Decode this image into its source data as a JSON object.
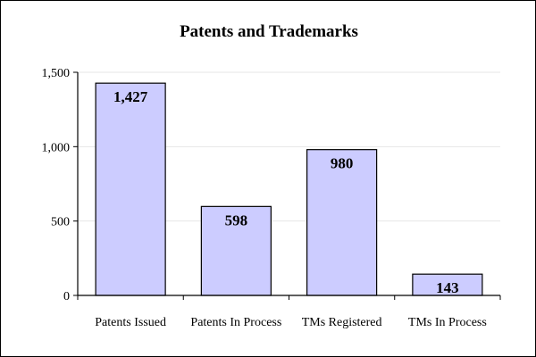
{
  "chart_data": {
    "type": "bar",
    "title": "Patents and Trademarks",
    "xlabel": "",
    "ylabel": "",
    "categories": [
      "Patents Issued",
      "Patents In Process",
      "TMs Registered",
      "TMs In Process"
    ],
    "values": [
      1427,
      598,
      980,
      143
    ],
    "data_labels": [
      "1,427",
      "598",
      "980",
      "143"
    ],
    "ylim": [
      0,
      1500
    ],
    "yticks": [
      0,
      500,
      1000,
      1500
    ],
    "ytick_labels": [
      "0",
      "500",
      "1,000",
      "1,500"
    ],
    "grid": true,
    "legend": "none",
    "colors": {
      "bar_fill": "#ccccff",
      "bar_stroke": "#000000",
      "grid": "#e6e6e6",
      "axis": "#000000",
      "background": "#ffffff"
    }
  }
}
